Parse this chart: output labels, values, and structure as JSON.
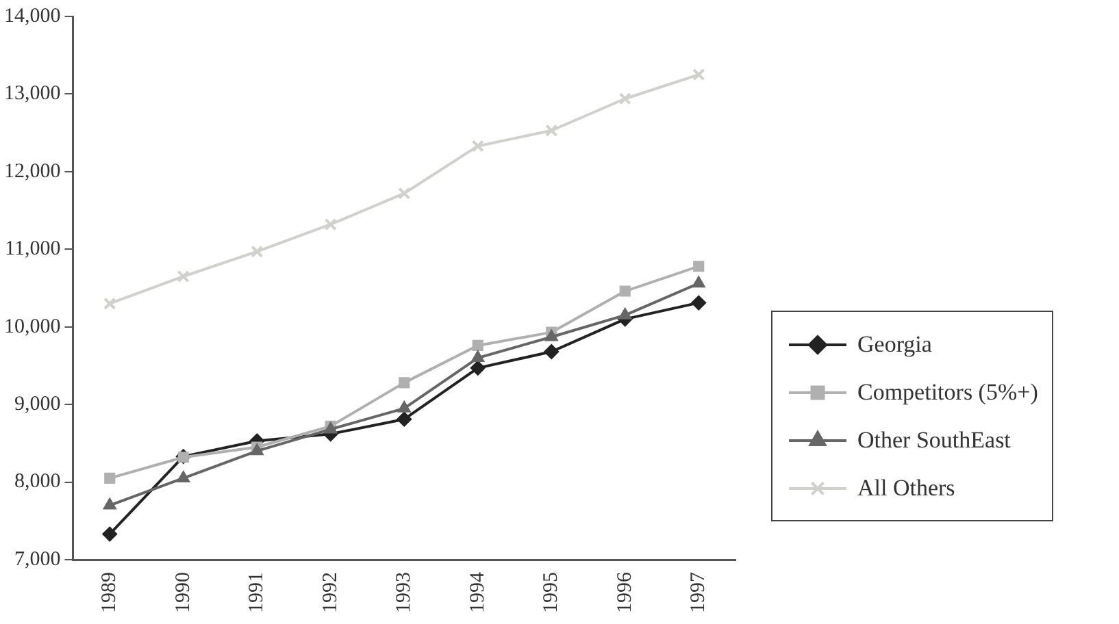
{
  "chart_data": {
    "type": "line",
    "categories": [
      "1989",
      "1990",
      "1991",
      "1992",
      "1993",
      "1994",
      "1995",
      "1996",
      "1997"
    ],
    "series": [
      {
        "name": "Georgia",
        "color": "#222222",
        "marker": "diamond",
        "values": [
          7330,
          8330,
          8530,
          8620,
          8810,
          9470,
          9680,
          10100,
          10310
        ]
      },
      {
        "name": "Competitors (5%+)",
        "color": "#b0b0b0",
        "marker": "square",
        "values": [
          8050,
          8320,
          8450,
          8720,
          9280,
          9760,
          9930,
          10460,
          10780
        ]
      },
      {
        "name": "Other SouthEast",
        "color": "#666666",
        "marker": "triangle",
        "values": [
          7700,
          8050,
          8400,
          8680,
          8950,
          9600,
          9870,
          10150,
          10560
        ]
      },
      {
        "name": "All Others",
        "color": "#d0d0cc",
        "marker": "cross",
        "values": [
          10300,
          10650,
          10970,
          11320,
          11720,
          12330,
          12530,
          12940,
          13250
        ]
      }
    ],
    "ylim": [
      7000,
      14000
    ],
    "yticks": [
      {
        "value": 7000,
        "label": "7,000"
      },
      {
        "value": 8000,
        "label": "8,000"
      },
      {
        "value": 9000,
        "label": "9,000"
      },
      {
        "value": 10000,
        "label": "10,000"
      },
      {
        "value": 11000,
        "label": "11,000"
      },
      {
        "value": 12000,
        "label": "12,000"
      },
      {
        "value": 13000,
        "label": "13,000"
      },
      {
        "value": 14000,
        "label": "14,000"
      }
    ],
    "grid": false,
    "legend": "right",
    "line_style": "solid"
  }
}
